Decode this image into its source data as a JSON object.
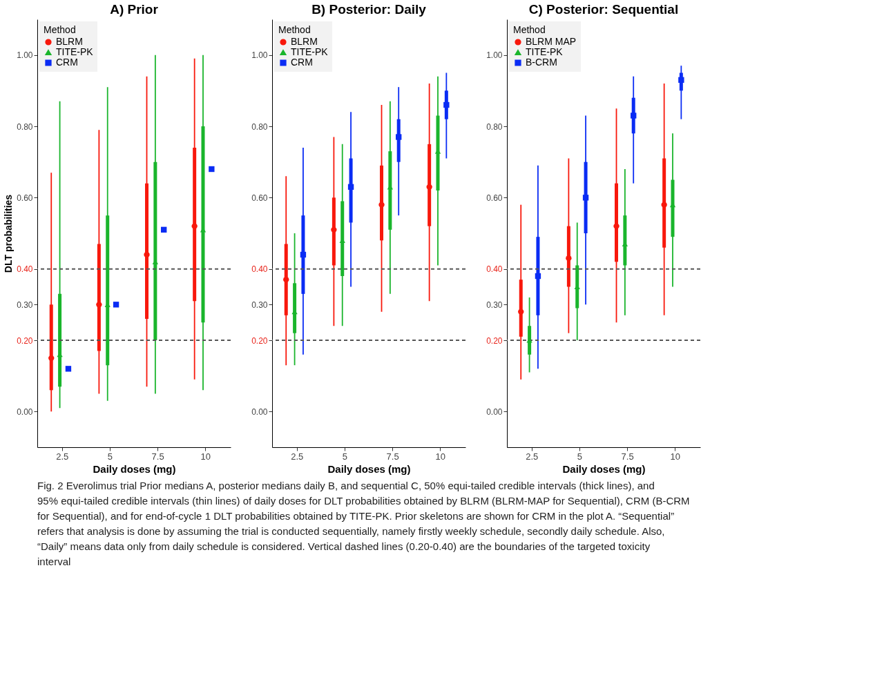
{
  "chart_data": [
    {
      "type": "box",
      "title": "A) Prior",
      "xlabel": "Daily doses (mg)",
      "ylabel": "DLT probabilities",
      "legend": "top left",
      "legend_title": "Method",
      "categories": [
        "2.5",
        "5",
        "7.5",
        "10"
      ],
      "ylim": [
        -0.1,
        1.1
      ],
      "yticks": [
        {
          "value": 0,
          "label": "0.00"
        },
        {
          "value": 0.2,
          "label": "0.20"
        },
        {
          "value": 0.3,
          "label": "0.30"
        },
        {
          "value": 0.4,
          "label": "0.40"
        },
        {
          "value": 0.6,
          "label": "0.60"
        },
        {
          "value": 0.8,
          "label": "0.80"
        },
        {
          "value": 1,
          "label": "1.00"
        }
      ],
      "ref_lines": [
        {
          "axis": "y",
          "value": 0.2,
          "color": "#555555",
          "line_style": "dashed"
        },
        {
          "axis": "y",
          "value": 0.4,
          "color": "#555555",
          "line_style": "dashed"
        }
      ],
      "series": [
        {
          "name": "BLRM",
          "color": "#f8180c",
          "marker": "circle",
          "boxes": [
            {
              "low": 0.0,
              "q1": 0.06,
              "median": 0.15,
              "q3": 0.3,
              "high": 0.67
            },
            {
              "low": 0.05,
              "q1": 0.17,
              "median": 0.3,
              "q3": 0.47,
              "high": 0.79
            },
            {
              "low": 0.07,
              "q1": 0.26,
              "median": 0.44,
              "q3": 0.64,
              "high": 0.94
            },
            {
              "low": 0.09,
              "q1": 0.31,
              "median": 0.52,
              "q3": 0.74,
              "high": 0.99
            }
          ]
        },
        {
          "name": "TITE-PK",
          "color": "#1ab52c",
          "marker": "triangle",
          "boxes": [
            {
              "low": 0.01,
              "q1": 0.07,
              "median": 0.16,
              "q3": 0.33,
              "high": 0.87
            },
            {
              "low": 0.03,
              "q1": 0.13,
              "median": 0.3,
              "q3": 0.55,
              "high": 0.91
            },
            {
              "low": 0.05,
              "q1": 0.2,
              "median": 0.42,
              "q3": 0.7,
              "high": 1.0
            },
            {
              "low": 0.06,
              "q1": 0.25,
              "median": 0.51,
              "q3": 0.8,
              "high": 1.0
            }
          ]
        },
        {
          "name": "CRM",
          "color": "#0a2cf4",
          "marker": "square",
          "type": "scatter",
          "x": [
            "2.5",
            "5",
            "7.5",
            "10"
          ],
          "values": [
            0.12,
            0.3,
            0.51,
            0.68
          ]
        }
      ]
    },
    {
      "type": "box",
      "title": "B) Posterior: Daily",
      "xlabel": "Daily doses (mg)",
      "legend": "top left",
      "legend_title": "Method",
      "categories": [
        "2.5",
        "5",
        "7.5",
        "10"
      ],
      "ylim": [
        -0.1,
        1.1
      ],
      "yticks": [
        {
          "value": 0,
          "label": "0.00"
        },
        {
          "value": 0.2,
          "label": "0.20"
        },
        {
          "value": 0.3,
          "label": "0.30"
        },
        {
          "value": 0.4,
          "label": "0.40"
        },
        {
          "value": 0.6,
          "label": "0.60"
        },
        {
          "value": 0.8,
          "label": "0.80"
        },
        {
          "value": 1,
          "label": "1.00"
        }
      ],
      "ref_lines": [
        {
          "axis": "y",
          "value": 0.2,
          "color": "#555555",
          "line_style": "dashed"
        },
        {
          "axis": "y",
          "value": 0.4,
          "color": "#555555",
          "line_style": "dashed"
        }
      ],
      "series": [
        {
          "name": "BLRM",
          "color": "#f8180c",
          "marker": "circle",
          "boxes": [
            {
              "low": 0.13,
              "q1": 0.27,
              "median": 0.37,
              "q3": 0.47,
              "high": 0.66
            },
            {
              "low": 0.24,
              "q1": 0.41,
              "median": 0.51,
              "q3": 0.6,
              "high": 0.77
            },
            {
              "low": 0.28,
              "q1": 0.48,
              "median": 0.58,
              "q3": 0.69,
              "high": 0.86
            },
            {
              "low": 0.31,
              "q1": 0.52,
              "median": 0.63,
              "q3": 0.75,
              "high": 0.92
            }
          ]
        },
        {
          "name": "TITE-PK",
          "color": "#1ab52c",
          "marker": "triangle",
          "boxes": [
            {
              "low": 0.13,
              "q1": 0.22,
              "median": 0.28,
              "q3": 0.36,
              "high": 0.5
            },
            {
              "low": 0.24,
              "q1": 0.38,
              "median": 0.48,
              "q3": 0.59,
              "high": 0.75
            },
            {
              "low": 0.33,
              "q1": 0.51,
              "median": 0.63,
              "q3": 0.73,
              "high": 0.87
            },
            {
              "low": 0.41,
              "q1": 0.62,
              "median": 0.73,
              "q3": 0.83,
              "high": 0.94
            }
          ]
        },
        {
          "name": "CRM",
          "color": "#0a2cf4",
          "marker": "square",
          "boxes": [
            {
              "low": 0.16,
              "q1": 0.33,
              "median": 0.44,
              "q3": 0.55,
              "high": 0.74
            },
            {
              "low": 0.35,
              "q1": 0.53,
              "median": 0.63,
              "q3": 0.71,
              "high": 0.84
            },
            {
              "low": 0.55,
              "q1": 0.7,
              "median": 0.77,
              "q3": 0.82,
              "high": 0.91
            },
            {
              "low": 0.71,
              "q1": 0.82,
              "median": 0.86,
              "q3": 0.9,
              "high": 0.95
            }
          ]
        }
      ]
    },
    {
      "type": "box",
      "title": "C) Posterior: Sequential",
      "xlabel": "Daily doses (mg)",
      "legend": "top left",
      "legend_title": "Method",
      "categories": [
        "2.5",
        "5",
        "7.5",
        "10"
      ],
      "ylim": [
        -0.1,
        1.1
      ],
      "yticks": [
        {
          "value": 0,
          "label": "0.00"
        },
        {
          "value": 0.2,
          "label": "0.20"
        },
        {
          "value": 0.3,
          "label": "0.30"
        },
        {
          "value": 0.4,
          "label": "0.40"
        },
        {
          "value": 0.6,
          "label": "0.60"
        },
        {
          "value": 0.8,
          "label": "0.80"
        },
        {
          "value": 1,
          "label": "1.00"
        }
      ],
      "ref_lines": [
        {
          "axis": "y",
          "value": 0.2,
          "color": "#555555",
          "line_style": "dashed"
        },
        {
          "axis": "y",
          "value": 0.4,
          "color": "#555555",
          "line_style": "dashed"
        }
      ],
      "series": [
        {
          "name": "BLRM MAP",
          "color": "#f8180c",
          "marker": "circle",
          "boxes": [
            {
              "low": 0.09,
              "q1": 0.21,
              "median": 0.28,
              "q3": 0.37,
              "high": 0.58
            },
            {
              "low": 0.22,
              "q1": 0.35,
              "median": 0.43,
              "q3": 0.52,
              "high": 0.71
            },
            {
              "low": 0.25,
              "q1": 0.42,
              "median": 0.52,
              "q3": 0.64,
              "high": 0.85
            },
            {
              "low": 0.27,
              "q1": 0.46,
              "median": 0.58,
              "q3": 0.71,
              "high": 0.92
            }
          ]
        },
        {
          "name": "TITE-PK",
          "color": "#1ab52c",
          "marker": "triangle",
          "boxes": [
            {
              "low": 0.11,
              "q1": 0.16,
              "median": 0.2,
              "q3": 0.24,
              "high": 0.32
            },
            {
              "low": 0.2,
              "q1": 0.29,
              "median": 0.35,
              "q3": 0.41,
              "high": 0.53
            },
            {
              "low": 0.27,
              "q1": 0.41,
              "median": 0.47,
              "q3": 0.55,
              "high": 0.68
            },
            {
              "low": 0.35,
              "q1": 0.49,
              "median": 0.58,
              "q3": 0.65,
              "high": 0.78
            }
          ]
        },
        {
          "name": "B-CRM",
          "color": "#0a2cf4",
          "marker": "square",
          "boxes": [
            {
              "low": 0.12,
              "q1": 0.27,
              "median": 0.38,
              "q3": 0.49,
              "high": 0.69
            },
            {
              "low": 0.3,
              "q1": 0.5,
              "median": 0.6,
              "q3": 0.7,
              "high": 0.83
            },
            {
              "low": 0.64,
              "q1": 0.78,
              "median": 0.83,
              "q3": 0.88,
              "high": 0.94
            },
            {
              "low": 0.82,
              "q1": 0.9,
              "median": 0.93,
              "q3": 0.95,
              "high": 0.97
            }
          ]
        }
      ],
      "annotations": [
        "Fig. 2 Everolimus trial Prior medians A, posterior medians daily B, and sequential C, 50% equi-tailed credible intervals (thick lines), and 95% equi-tailed credible intervals (thin lines) of daily doses for DLT probabilities obtained by BLRM (BLRM-MAP for Sequential), CRM (B-CRM for Sequential), and for end-of-cycle 1 DLT probabilities obtained by TITE-PK. Prior skeletons are shown for CRM in the plot A. “Sequential” refers that analysis is done by assuming the trial is conducted sequentially, namely firstly weekly schedule, secondly daily schedule. Also, “Daily” means data only from daily schedule is considered. Vertical dashed lines (0.20-0.40) are the boundaries of the targeted toxicity interval"
      ]
    }
  ]
}
